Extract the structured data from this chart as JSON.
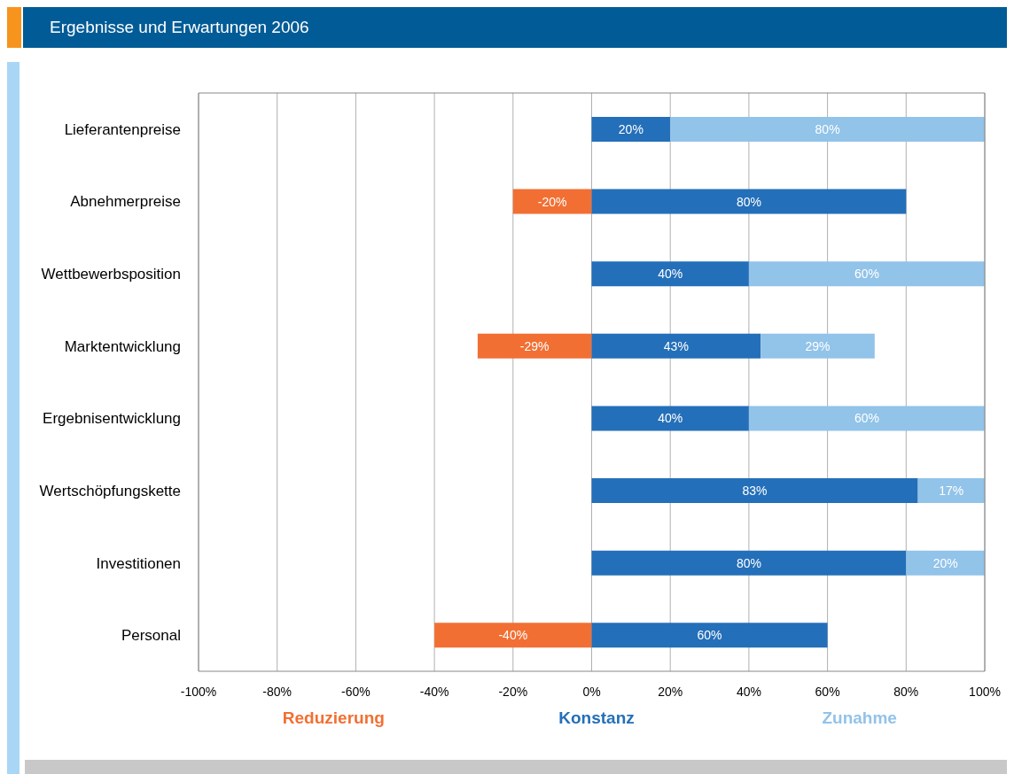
{
  "chart_data": {
    "type": "bar",
    "title": "Ergebnisse und Erwartungen 2006",
    "orientation": "horizontal",
    "stacked": true,
    "categories": [
      "Lieferantenpreise",
      "Abnehmerpreise",
      "Wettbewerbsposition",
      "Marktentwicklung",
      "Ergebnisentwicklung",
      "Wertschöpfungskette",
      "Investitionen",
      "Personal"
    ],
    "series": [
      {
        "name": "Reduzierung",
        "color": "#f26f33",
        "values": [
          0,
          -20,
          0,
          -29,
          0,
          0,
          0,
          -40
        ],
        "value_labels": [
          null,
          "-20%",
          null,
          "-29%",
          null,
          null,
          null,
          "-40%"
        ]
      },
      {
        "name": "Konstanz",
        "color": "#246fb9",
        "values": [
          20,
          80,
          40,
          43,
          40,
          83,
          80,
          60
        ],
        "value_labels": [
          "20%",
          "80%",
          "40%",
          "43%",
          "40%",
          "83%",
          "80%",
          "60%"
        ]
      },
      {
        "name": "Zunahme",
        "color": "#92c3e9",
        "values": [
          80,
          0,
          60,
          29,
          60,
          17,
          20,
          0
        ],
        "value_labels": [
          "80%",
          null,
          "60%",
          "29%",
          "60%",
          "17%",
          "20%",
          null
        ]
      }
    ],
    "xlim": [
      -100,
      100
    ],
    "xticks": [
      {
        "value": -100,
        "label": "-100%"
      },
      {
        "value": -80,
        "label": "-80%"
      },
      {
        "value": -60,
        "label": "-60%"
      },
      {
        "value": -40,
        "label": "-40%"
      },
      {
        "value": -20,
        "label": "-20%"
      },
      {
        "value": 0,
        "label": "0%"
      },
      {
        "value": 20,
        "label": "20%"
      },
      {
        "value": 40,
        "label": "40%"
      },
      {
        "value": 60,
        "label": "60%"
      },
      {
        "value": 80,
        "label": "80%"
      },
      {
        "value": 100,
        "label": "100%"
      }
    ],
    "grid": "x",
    "legend": "bottom"
  }
}
